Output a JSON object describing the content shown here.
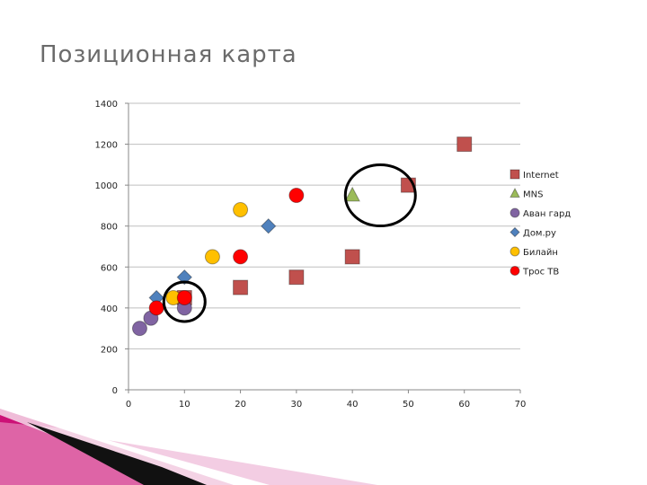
{
  "slide": {
    "title": "Позиционная карта"
  },
  "chart_data": {
    "type": "scatter",
    "title": "",
    "xlabel": "",
    "ylabel": "",
    "xlim": [
      0,
      70
    ],
    "ylim": [
      0,
      1400
    ],
    "x_ticks": [
      0,
      10,
      20,
      30,
      40,
      50,
      60,
      70
    ],
    "y_ticks": [
      0,
      200,
      400,
      600,
      800,
      1000,
      1200,
      1400
    ],
    "grid": "horizontal",
    "legend_position": "right",
    "series": [
      {
        "name": "Internet",
        "marker": "square",
        "color": "#c0504d",
        "points": [
          [
            10,
            450
          ],
          [
            20,
            500
          ],
          [
            30,
            550
          ],
          [
            40,
            650
          ],
          [
            50,
            1000
          ],
          [
            60,
            1200
          ]
        ]
      },
      {
        "name": "MNS",
        "marker": "triangle",
        "color": "#9bbb59",
        "points": [
          [
            40,
            950
          ]
        ]
      },
      {
        "name": "Аван гард",
        "marker": "circle",
        "color": "#8064a2",
        "points": [
          [
            2,
            300
          ],
          [
            4,
            350
          ],
          [
            10,
            400
          ]
        ]
      },
      {
        "name": "Дом.ру",
        "marker": "diamond",
        "color": "#4f81bd",
        "points": [
          [
            5,
            450
          ],
          [
            10,
            550
          ],
          [
            25,
            800
          ]
        ]
      },
      {
        "name": "Билайн",
        "marker": "circle",
        "color": "#ffc000",
        "points": [
          [
            8,
            450
          ],
          [
            15,
            650
          ],
          [
            20,
            880
          ]
        ]
      },
      {
        "name": "Трос ТВ",
        "marker": "circle",
        "color": "#ff0000",
        "points": [
          [
            5,
            400
          ],
          [
            10,
            450
          ],
          [
            20,
            650
          ],
          [
            30,
            950
          ]
        ]
      }
    ],
    "annotations": [
      {
        "shape": "ellipse",
        "x": 45,
        "y": 950
      },
      {
        "shape": "ellipse",
        "x": 10,
        "y": 430
      }
    ]
  }
}
